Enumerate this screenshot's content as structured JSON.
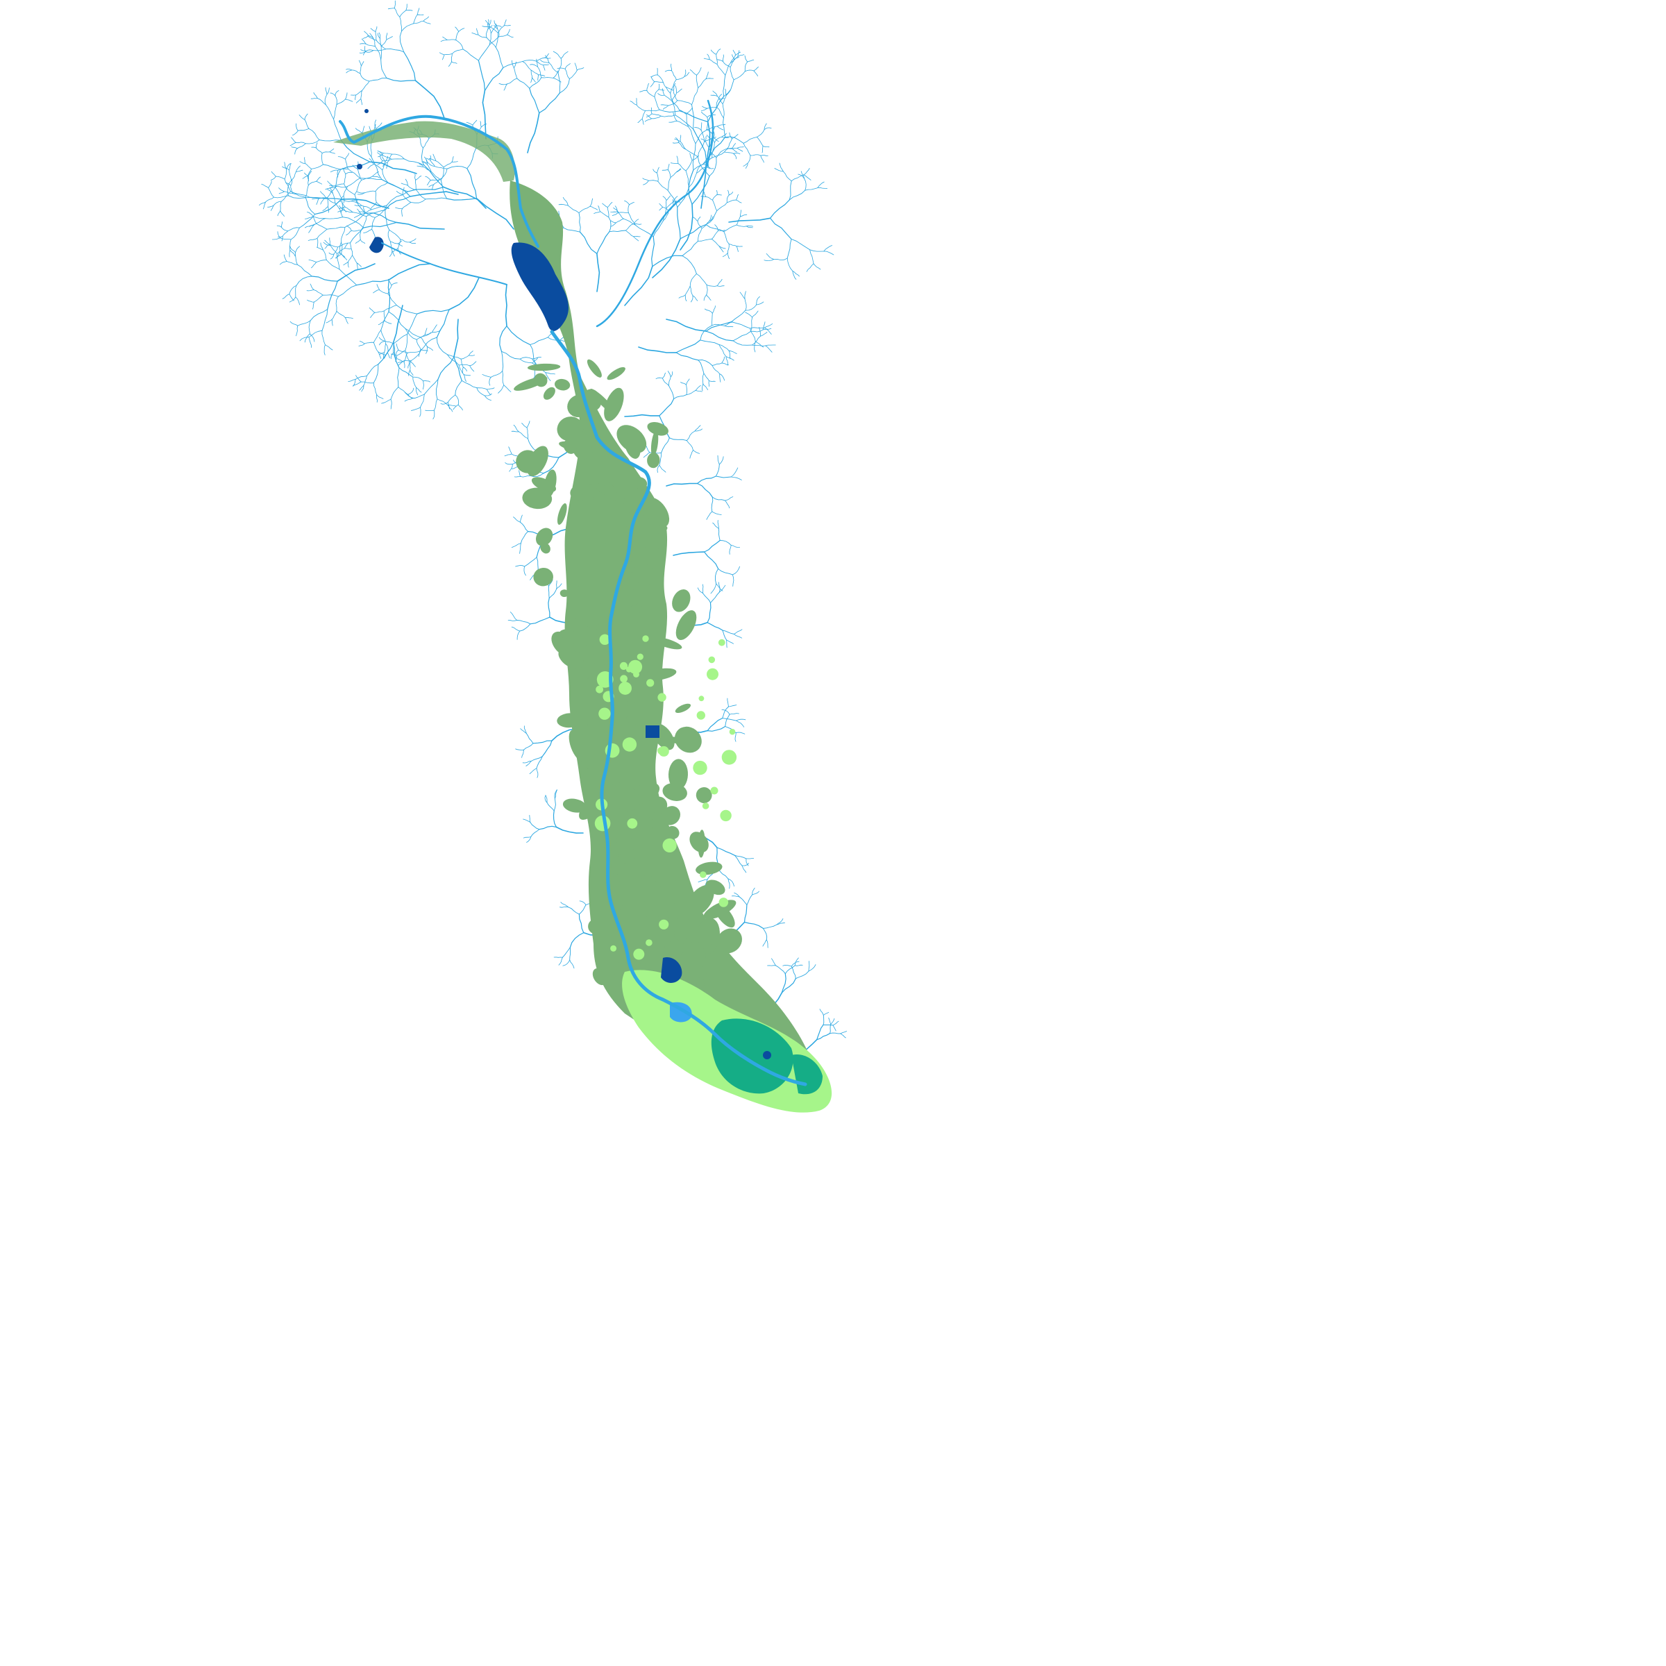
{
  "map": {
    "type": "hydrography",
    "colors": {
      "background": "#ffffff",
      "stream": "#2aa6e0",
      "main_river": "#2fa8e2",
      "floodplain": "#7ab176",
      "wetland_light": "#a6f58a",
      "wetland_emerald": "#15ad86",
      "reservoir": "#0a4c9f",
      "bay_water": "#3aa6ee"
    },
    "layers": [
      {
        "id": "streams",
        "icon": "stream-network"
      },
      {
        "id": "floodplain",
        "icon": "floodplain-polygon"
      },
      {
        "id": "wetlands",
        "icon": "wetland-polygon"
      },
      {
        "id": "reservoirs",
        "icon": "lake-polygon"
      },
      {
        "id": "main-river",
        "icon": "river-line"
      }
    ]
  }
}
